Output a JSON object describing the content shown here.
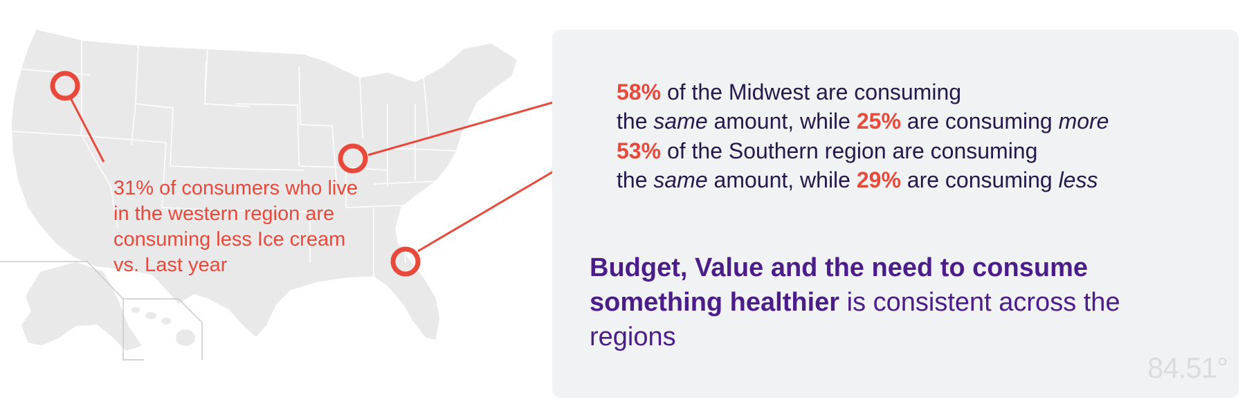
{
  "map_note_west": "31% of consumers who live in the western region are consuming less Ice cream vs. Last year",
  "stat_midwest": {
    "pct1": "58%",
    "text1": " of the Midwest are consuming",
    "text2_a": "the ",
    "em1": "same",
    "text2_b": " amount, while ",
    "pct2": "25%",
    "text2_c": " are consuming ",
    "em2": "more"
  },
  "stat_south": {
    "pct1": "53%",
    "text1": " of the Southern region are consuming",
    "text2_a": "the ",
    "em1": "same",
    "text2_b": " amount, while ",
    "pct2": "29%",
    "text2_c": " are consuming ",
    "em2": "less"
  },
  "summary": {
    "bold": "Budget, Value and the need to consume something healthier",
    "rest": " is consistent across the regions"
  },
  "logo_text": "84.51°",
  "colors": {
    "accent": "#e8493b",
    "navy": "#25184a",
    "purple": "#4b1d8a",
    "panel": "#f1f2f3",
    "map_fill": "#e9e9ea",
    "map_border": "#ffffff"
  },
  "icons": [
    "west-marker-icon",
    "midwest-marker-icon",
    "southeast-marker-icon"
  ]
}
